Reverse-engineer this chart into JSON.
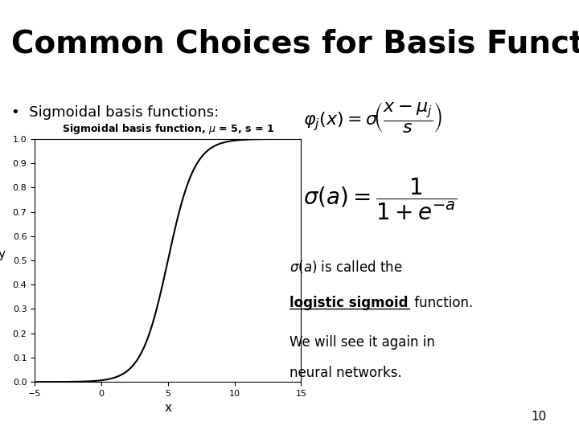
{
  "title": "Common Choices for Basis Functions",
  "title_fontsize": 28,
  "title_fontweight": "bold",
  "background_color": "#ffffff",
  "slide_number": "10",
  "bullet_text": "Sigmoidal basis functions:",
  "mu": 5,
  "s": 1,
  "x_min": -5,
  "x_max": 15,
  "xlabel": "x",
  "ylabel": "y",
  "yticks": [
    0,
    0.1,
    0.2,
    0.3,
    0.4,
    0.5,
    0.6,
    0.7,
    0.8,
    0.9,
    1
  ],
  "xticks": [
    -5,
    0,
    5,
    10,
    15
  ],
  "line_color": "#000000",
  "line_width": 1.5
}
